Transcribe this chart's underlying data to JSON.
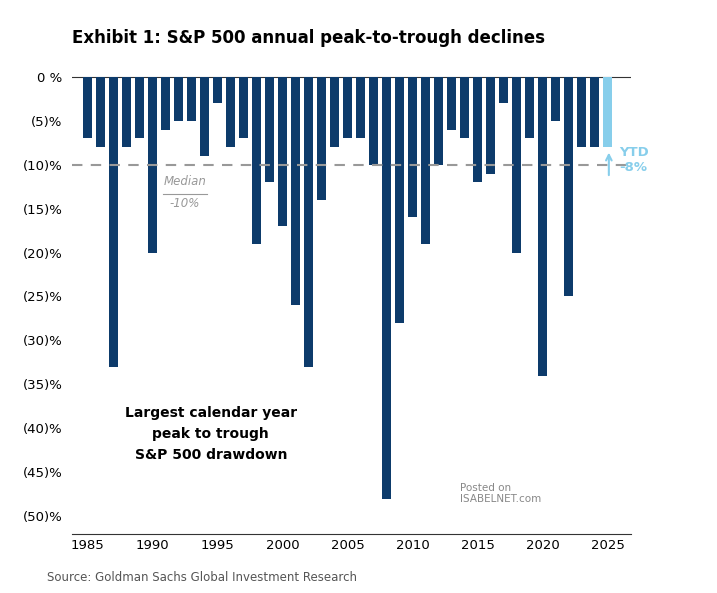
{
  "title": "Exhibit 1: S&P 500 annual peak-to-trough declines",
  "source": "Source: Goldman Sachs Global Investment Research",
  "years": [
    1985,
    1986,
    1987,
    1988,
    1989,
    1990,
    1991,
    1992,
    1993,
    1994,
    1995,
    1996,
    1997,
    1998,
    1999,
    2000,
    2001,
    2002,
    2003,
    2004,
    2005,
    2006,
    2007,
    2008,
    2009,
    2010,
    2011,
    2012,
    2013,
    2014,
    2015,
    2016,
    2017,
    2018,
    2019,
    2020,
    2021,
    2022,
    2023,
    2024,
    2025
  ],
  "values": [
    -7,
    -8,
    -33,
    -8,
    -7,
    -20,
    -6,
    -5,
    -5,
    -9,
    -3,
    -8,
    -7,
    -19,
    -12,
    -17,
    -26,
    -33,
    -14,
    -8,
    -7,
    -7,
    -10,
    -48,
    -28,
    -16,
    -19,
    -10,
    -6,
    -7,
    -12,
    -11,
    -3,
    -20,
    -7,
    -34,
    -5,
    -25,
    -8,
    -8,
    -8
  ],
  "ytd_year": 2025,
  "ytd_value": -8,
  "bar_color": "#0d3b6b",
  "ytd_color": "#87ceeb",
  "median_value": -10,
  "median_color": "#999999",
  "ylim": [
    -52,
    2
  ],
  "yticks": [
    0,
    -5,
    -10,
    -15,
    -20,
    -25,
    -30,
    -35,
    -40,
    -45,
    -50
  ],
  "annotation_text": "Largest calendar year\npeak to trough\nS&P 500 drawdown",
  "median_label_line1": "Median",
  "median_label_line2": "-10%",
  "ytd_label": "YTD\n-8%",
  "background_color": "#ffffff",
  "plot_bg_color": "#ffffff",
  "isabelnet_text": "Posted on\nISABELNET.com"
}
